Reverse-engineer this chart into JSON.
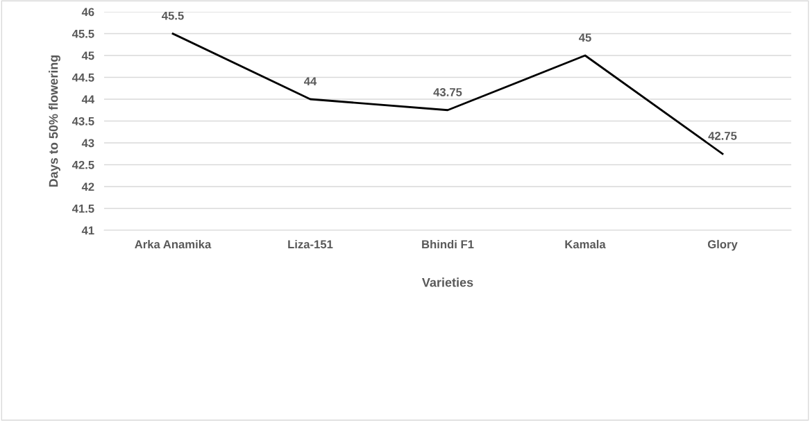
{
  "chart_data": {
    "type": "line",
    "xlabel": "Varieties",
    "ylabel": "Days to 50% flowering",
    "categories": [
      "Arka Anamika",
      "Liza-151",
      "Bhindi F1",
      "Kamala",
      "Glory"
    ],
    "series": [
      {
        "color": "#000000",
        "values": [
          45.5,
          44,
          43.75,
          45,
          42.75
        ]
      }
    ],
    "ylim": [
      41,
      46
    ],
    "yticks": [
      41,
      41.5,
      42,
      42.5,
      43,
      43.5,
      44,
      44.5,
      45,
      45.5,
      46
    ],
    "grid": "y",
    "data_labels": true,
    "legend": false,
    "marker": "none",
    "line_style": "solid"
  }
}
